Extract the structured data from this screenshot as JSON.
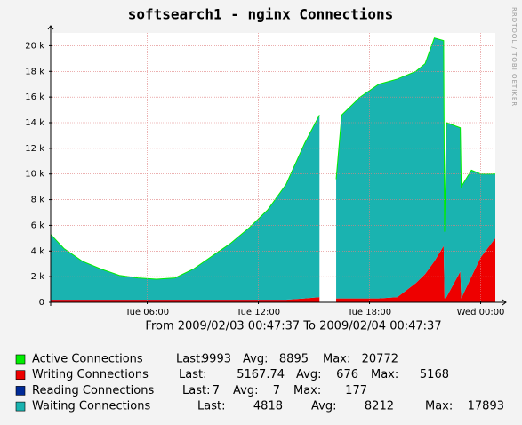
{
  "chart_data": {
    "type": "stacked-area",
    "title": "softsearch1 - nginx Connections",
    "x_label": "From 2009/02/03 00:47:37 To 2009/02/04 00:47:37",
    "watermark": "RRDTOOL / TOBI OETIKER",
    "x": [
      0.79,
      1.5,
      2.5,
      3.5,
      4.5,
      5.5,
      6.5,
      7.5,
      8.5,
      9.5,
      10.5,
      11.5,
      12.5,
      13.5,
      14.5,
      15.3,
      15.5,
      16.0,
      16.2,
      16.5,
      17.5,
      18.5,
      19.5,
      20.5,
      21.0,
      21.5,
      22.0,
      22.05,
      22.15,
      22.9,
      22.95,
      23.5,
      24.0,
      24.79
    ],
    "xlim": [
      0.79,
      24.79
    ],
    "xticks": [
      {
        "value": 6,
        "label": "Tue 06:00"
      },
      {
        "value": 12,
        "label": "Tue 12:00"
      },
      {
        "value": 18,
        "label": "Tue 18:00"
      },
      {
        "value": 24,
        "label": "Wed 00:00"
      }
    ],
    "ylim": [
      0,
      21000
    ],
    "yticks": [
      0,
      {
        "value": 2000,
        "label": "2 k"
      },
      {
        "value": 4000,
        "label": "4 k"
      },
      {
        "value": 6000,
        "label": "6 k"
      },
      {
        "value": 8000,
        "label": "8 k"
      },
      {
        "value": 10000,
        "label": "10 k"
      },
      {
        "value": 12000,
        "label": "12 k"
      },
      {
        "value": 14000,
        "label": "14 k"
      },
      {
        "value": 16000,
        "label": "16 k"
      },
      {
        "value": 18000,
        "label": "18 k"
      },
      {
        "value": 20000,
        "label": "20 k"
      }
    ],
    "grid": true,
    "legend_labels": {
      "last": "Last:",
      "avg": "Avg:",
      "max": "Max:"
    },
    "series": [
      {
        "name": "Active Connections",
        "color": "#00ee00",
        "kind": "line",
        "last": 9993,
        "avg": 8895,
        "max": 20772,
        "values": [
          5300,
          4200,
          3200,
          2600,
          2100,
          1900,
          1800,
          1900,
          2600,
          3600,
          4600,
          5800,
          7200,
          9200,
          12400,
          14600,
          null,
          null,
          9600,
          14600,
          16000,
          17000,
          17400,
          18000,
          18600,
          20600,
          20400,
          5500,
          14000,
          13600,
          9000,
          10300,
          10000,
          10000
        ]
      },
      {
        "name": "Writing Connections",
        "color": "#ee0000",
        "kind": "area",
        "last": 5167.74,
        "avg": 676,
        "max": 5168,
        "values": [
          200,
          200,
          200,
          200,
          200,
          200,
          200,
          200,
          200,
          200,
          200,
          200,
          200,
          200,
          300,
          400,
          null,
          null,
          300,
          300,
          300,
          300,
          400,
          1500,
          2200,
          3200,
          4400,
          300,
          400,
          2400,
          300,
          2000,
          3500,
          5000
        ]
      },
      {
        "name": "Reading Connections",
        "color": "#002a97",
        "kind": "area",
        "last": 7,
        "avg": 7,
        "max": 177,
        "values": [
          7,
          7,
          7,
          7,
          7,
          7,
          7,
          7,
          7,
          7,
          7,
          7,
          7,
          7,
          7,
          7,
          null,
          null,
          7,
          7,
          7,
          7,
          7,
          7,
          7,
          7,
          7,
          7,
          7,
          7,
          7,
          7,
          7,
          7
        ]
      },
      {
        "name": "Waiting Connections",
        "color": "#1ab3b0",
        "kind": "area",
        "last": 4818,
        "avg": 8212,
        "max": 17893,
        "values": [
          5093,
          3993,
          2993,
          2393,
          1893,
          1693,
          1593,
          1693,
          2393,
          3393,
          4393,
          5593,
          6993,
          8993,
          12093,
          14193,
          null,
          null,
          9293,
          14293,
          15693,
          16693,
          16993,
          16493,
          16393,
          17393,
          15993,
          5193,
          13593,
          11193,
          8693,
          8293,
          6493,
          4993
        ]
      }
    ]
  }
}
